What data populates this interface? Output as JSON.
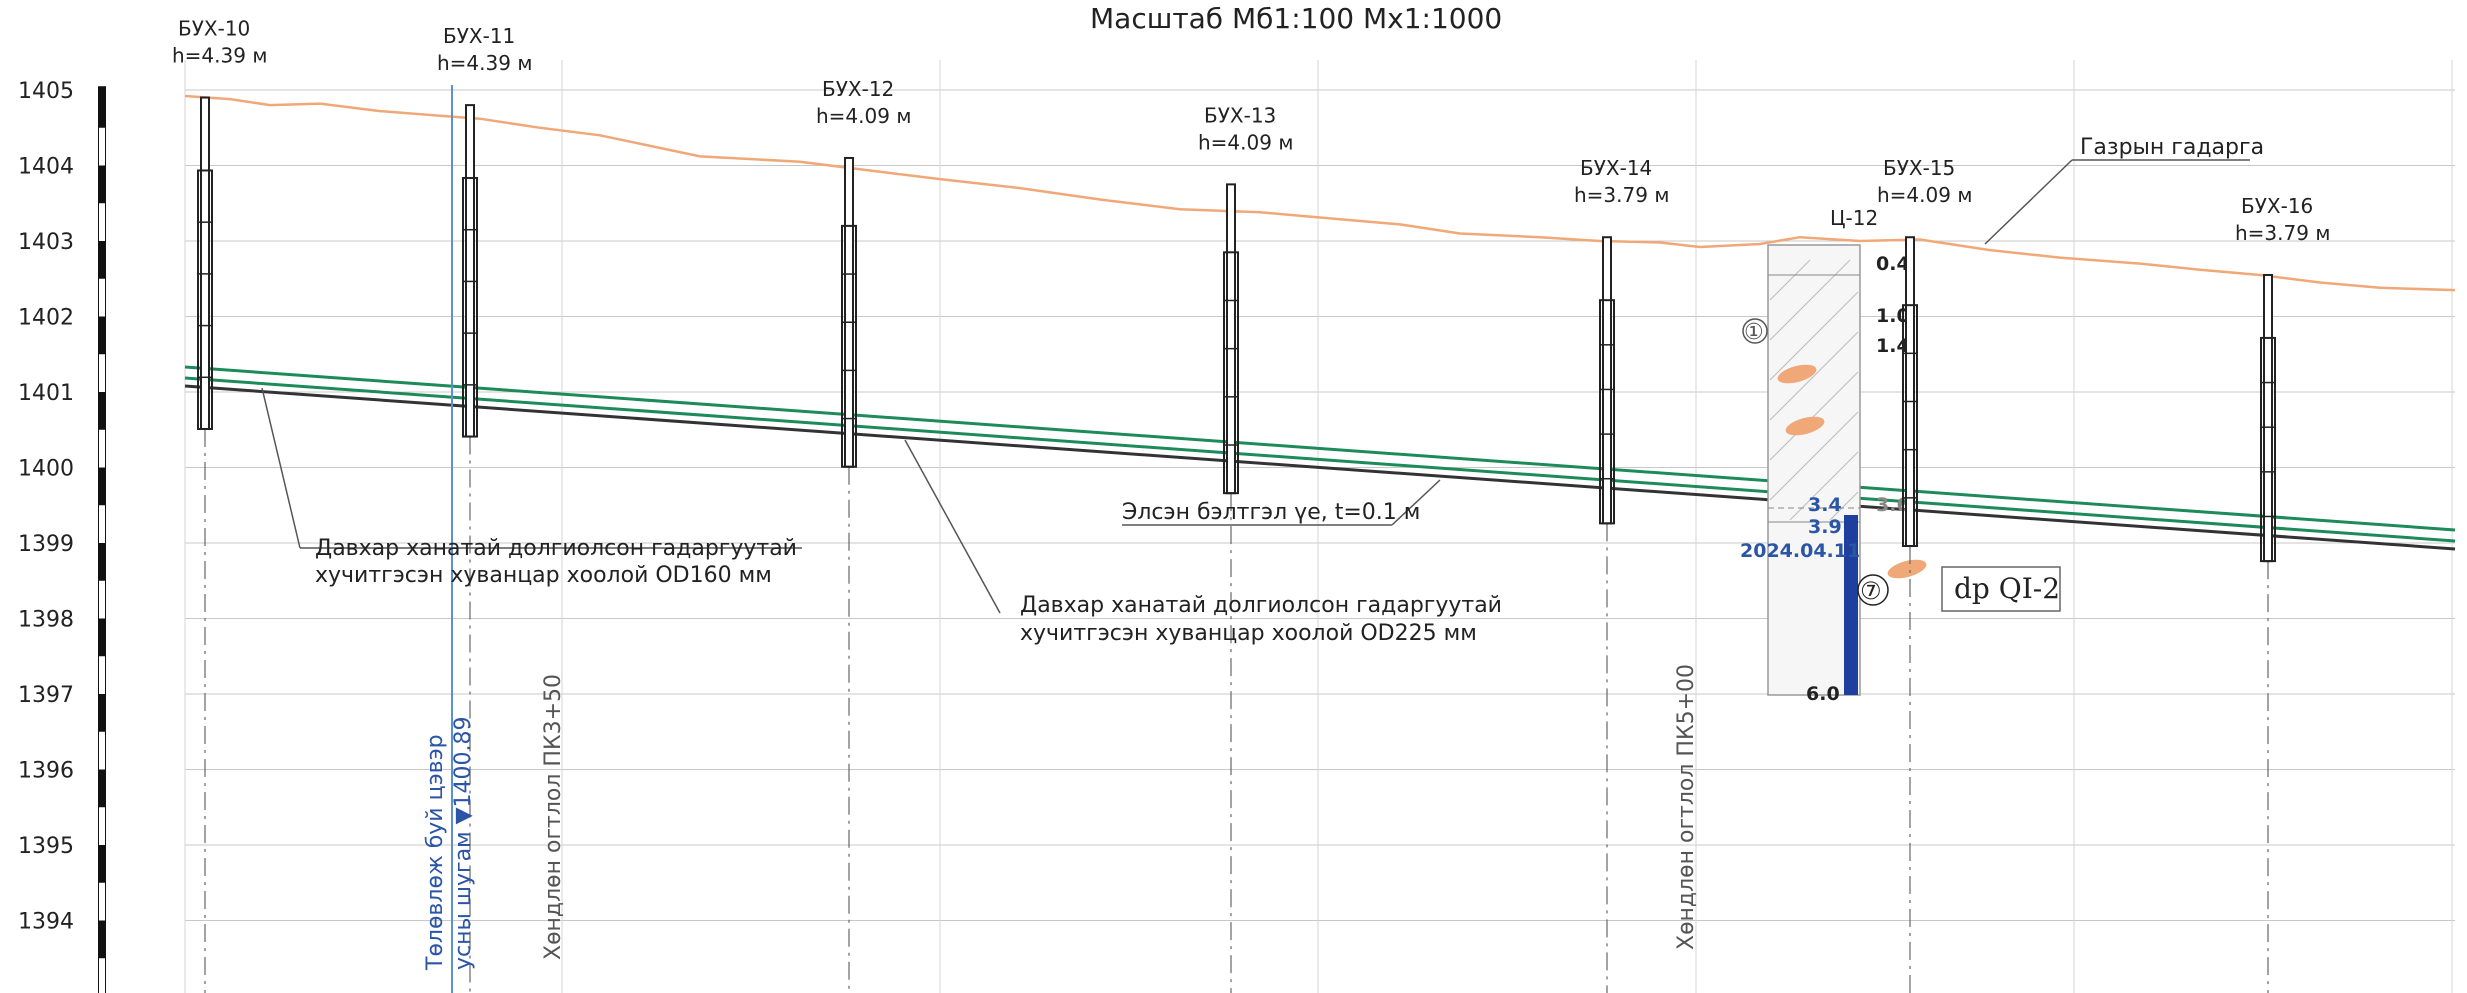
{
  "title": "Масштаб Мб1:100 Мх1:1000",
  "elevation_ticks": [
    "1405",
    "1404",
    "1403",
    "1402",
    "1401",
    "1400",
    "1399",
    "1398",
    "1397",
    "1396",
    "1395",
    "1394"
  ],
  "wells": [
    {
      "id": "БУХ-10",
      "h": "h=4.39 м",
      "top": 1404.9,
      "depth": 4.39
    },
    {
      "id": "БУХ-11",
      "h": "h=4.39 м",
      "top": 1404.8,
      "depth": 4.39
    },
    {
      "id": "БУХ-12",
      "h": "h=4.09 м",
      "top": 1404.1,
      "depth": 4.09
    },
    {
      "id": "БУХ-13",
      "h": "h=4.09 м",
      "top": 1403.75,
      "depth": 4.09
    },
    {
      "id": "БУХ-14",
      "h": "h=3.79 м",
      "top": 1403.05,
      "depth": 3.79
    },
    {
      "id": "БУХ-15",
      "h": "h=4.09 м",
      "top": 1403.05,
      "depth": 4.09
    },
    {
      "id": "БУХ-16",
      "h": "h=3.79 м",
      "top": 1402.55,
      "depth": 3.79
    }
  ],
  "annotations": {
    "ground_surface": "Газрын гадарга",
    "pipe_od160_line1": "Давхар ханатай долгиолсон гадаргуутай",
    "pipe_od160_line2": "хучитгэсэн хуванцар хоолой OD160 мм",
    "pipe_od225_line1": "Давхар ханатай долгиолсон гадаргуутай",
    "pipe_od225_line2": "хучитгэсэн хуванцар хоолой OD225 мм",
    "sand_bedding": "Элсэн бэлтгэл үе, t=0.1 м",
    "design_line1": "Төлөвлөж буй цэвэр",
    "design_line2": "усны шугам ▼1400.89",
    "pk_350": "Хөндлөн огтлол ПК3+50",
    "pk_500": "Хөндлөн огтлол ПК5+00",
    "geo_unit": "dp QI-2"
  },
  "borehole": {
    "id": "Ц-12",
    "date": "2024.04.11",
    "top": 1403.0,
    "total_depth": "6.0",
    "layer_marks": [
      "0.4",
      "1.0",
      "1.4",
      "3.6",
      "3.4",
      "3.9"
    ],
    "layer_circles": [
      "①",
      "⑦"
    ]
  },
  "colors": {
    "ground": "#f0a878",
    "pipe_green": "#1d8a5a",
    "pipe_black": "#333333",
    "design_blue": "#5b8fd6",
    "water_blue": "#1f3f9e",
    "grid": "#c8c8c8"
  }
}
